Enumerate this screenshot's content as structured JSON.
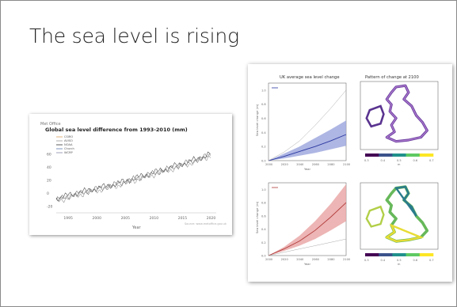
{
  "slide": {
    "title": "The sea level is rising"
  },
  "left_figure": {
    "credit": "Met Office",
    "title": "Global sea level difference from 1993-2010 (mm)",
    "legend": [
      "CSIRO",
      "AVISO",
      "NOAA",
      "Church",
      "WCRP"
    ],
    "y_ticks": [
      "60",
      "40",
      "20",
      "0",
      "-20"
    ],
    "x_ticks": [
      "1995",
      "2000",
      "2005",
      "2010",
      "2015",
      "2020"
    ],
    "xlabel": "Year",
    "footnote": "Source: www.metoffice.gov.uk"
  },
  "right_figure": {
    "panel_a_title": "UK average sea level change",
    "panel_b_title": "Pattern of change at 2100",
    "panel_c_title": "",
    "panel_d_title": "",
    "colorbar_ticks": [
      "0.3",
      "0.4",
      "0.5",
      "0.6",
      "0.7"
    ],
    "x_ticks": [
      "2000",
      "2020",
      "2040",
      "2060",
      "2080",
      "2100"
    ],
    "y_ticks": [
      "0.0",
      "0.2",
      "0.4",
      "0.6",
      "0.8",
      "1.0"
    ],
    "ylabel": "Sea level change (m)",
    "xlabel": "Year",
    "colorbar_label": "m"
  },
  "colors": {
    "blue_band": "#9aa4dc",
    "blue_line": "#2a37a0",
    "red_band": "#e8a3a3",
    "red_line": "#b23a3a",
    "map_dark": "#442070",
    "map_light": "#e8dc35"
  },
  "chart_data": [
    {
      "type": "line",
      "title": "Global sea level difference from 1993-2010 (mm)",
      "xlabel": "Year",
      "ylabel": "",
      "xlim": [
        1993,
        2021
      ],
      "ylim": [
        -30,
        70
      ],
      "series": [
        {
          "name": "CSIRO",
          "x": [
            1993,
            1998,
            2003,
            2008,
            2013,
            2018,
            2020
          ],
          "y": [
            -10,
            2,
            12,
            25,
            38,
            52,
            58
          ]
        },
        {
          "name": "AVISO",
          "x": [
            1993,
            1998,
            2003,
            2008,
            2013,
            2018,
            2020
          ],
          "y": [
            -12,
            0,
            10,
            23,
            36,
            50,
            57
          ]
        },
        {
          "name": "NOAA",
          "x": [
            1993,
            1998,
            2003,
            2008,
            2013,
            2018,
            2020
          ],
          "y": [
            -8,
            3,
            13,
            26,
            39,
            53,
            60
          ]
        }
      ]
    },
    {
      "type": "line",
      "title": "UK average sea level change",
      "xlabel": "Year",
      "ylabel": "Sea level change (m)",
      "xlim": [
        2000,
        2100
      ],
      "ylim": [
        0,
        1.1
      ],
      "series": [
        {
          "name": "",
          "x": [
            2000,
            2020,
            2040,
            2060,
            2080,
            2100
          ],
          "y": [
            0.0,
            0.06,
            0.13,
            0.2,
            0.28,
            0.37
          ],
          "low": [
            0.0,
            0.03,
            0.07,
            0.11,
            0.16,
            0.21
          ],
          "high": [
            0.0,
            0.1,
            0.2,
            0.32,
            0.44,
            0.57
          ]
        },
        {
          "name": "",
          "x": [
            2000,
            2020,
            2040,
            2060,
            2080,
            2100
          ],
          "y": [
            0.0,
            0.12,
            0.28,
            0.5,
            0.74,
            1.0
          ]
        }
      ]
    },
    {
      "type": "line",
      "title": "",
      "xlabel": "Year",
      "ylabel": "Sea level change (m)",
      "xlim": [
        2000,
        2100
      ],
      "ylim": [
        0,
        1.1
      ],
      "series": [
        {
          "name": "",
          "x": [
            2000,
            2020,
            2040,
            2060,
            2080,
            2100
          ],
          "y": [
            0.0,
            0.1,
            0.22,
            0.38,
            0.58,
            0.8
          ],
          "low": [
            0.0,
            0.07,
            0.15,
            0.25,
            0.38,
            0.52
          ],
          "high": [
            0.0,
            0.13,
            0.3,
            0.52,
            0.78,
            1.08
          ]
        },
        {
          "name": "",
          "x": [
            2000,
            2020,
            2040,
            2060,
            2080,
            2100
          ],
          "y": [
            0.0,
            0.05,
            0.1,
            0.15,
            0.2,
            0.25
          ]
        }
      ]
    }
  ]
}
